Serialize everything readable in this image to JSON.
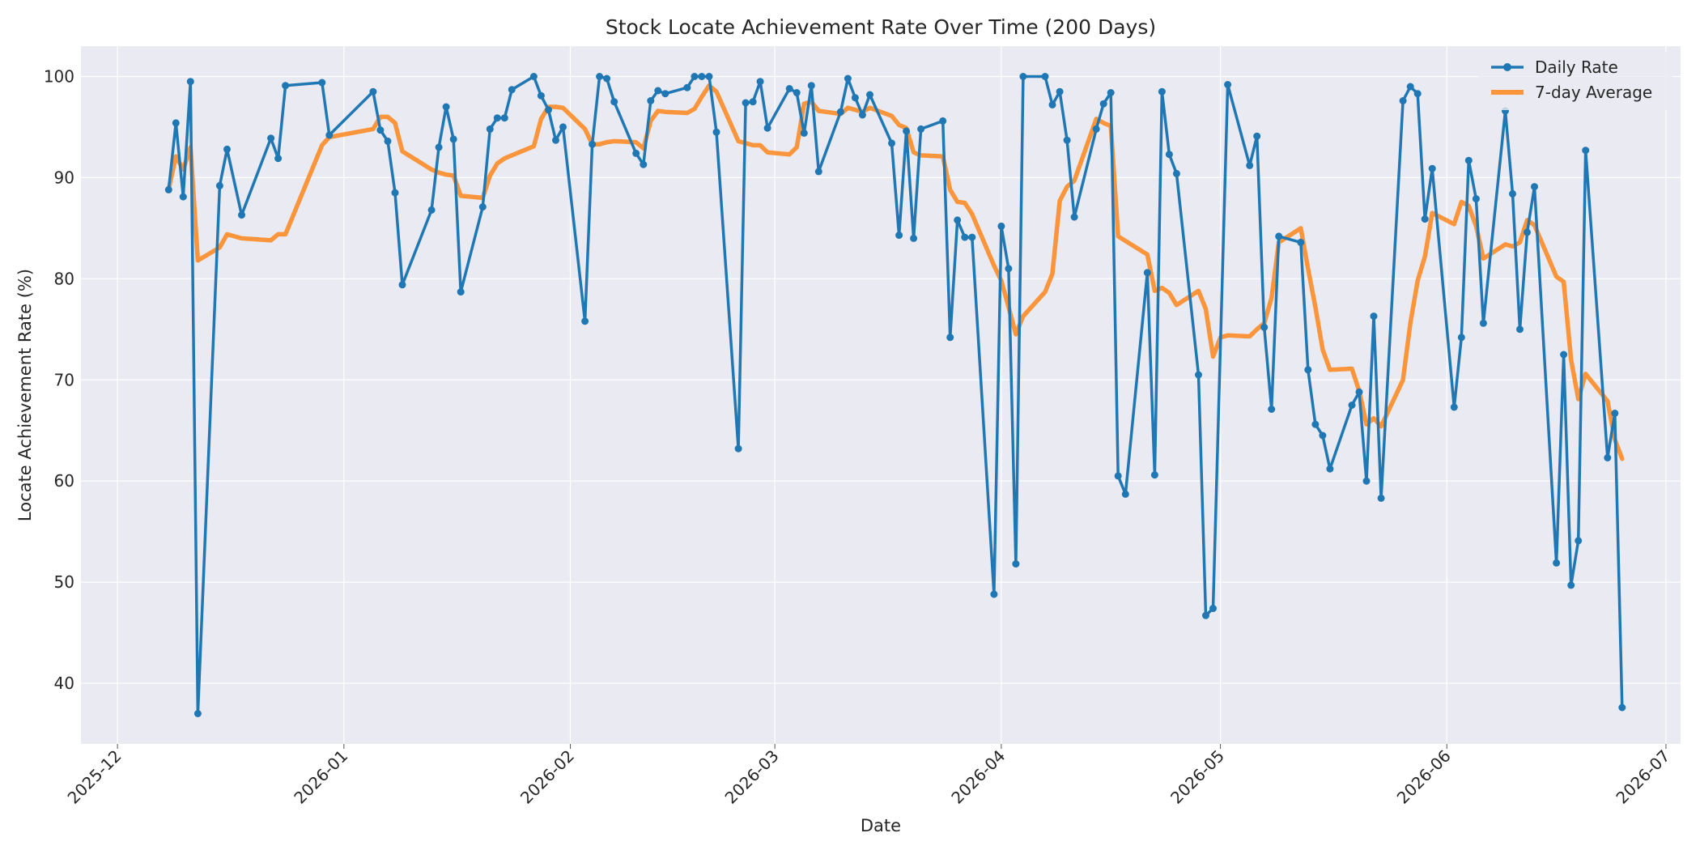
{
  "chart_data": {
    "type": "line",
    "title": "Stock Locate Achievement Rate Over Time (200 Days)",
    "xlabel": "Date",
    "ylabel": "Locate Achievement Rate (%)",
    "x_range": [
      "2025-11-26",
      "2026-07-03"
    ],
    "ylim": [
      34,
      103
    ],
    "x_ticks": [
      "2025-12",
      "2026-01",
      "2026-02",
      "2026-03",
      "2026-04",
      "2026-05",
      "2026-06",
      "2026-07"
    ],
    "y_ticks": [
      40,
      50,
      60,
      70,
      80,
      90,
      100
    ],
    "grid": true,
    "legend_position": "upper-right",
    "colors": {
      "daily": "#1f77b4",
      "average": "#ff7f0e",
      "plot_bg": "#eaeaf2",
      "grid": "#ffffff"
    },
    "series": [
      {
        "name": "Daily Rate",
        "style": "line-with-markers",
        "points": [
          [
            "2025-12-08",
            88.8
          ],
          [
            "2025-12-09",
            95.4
          ],
          [
            "2025-12-10",
            88.1
          ],
          [
            "2025-12-11",
            99.5
          ],
          [
            "2025-12-12",
            37.0
          ],
          [
            "2025-12-15",
            89.2
          ],
          [
            "2025-12-16",
            92.8
          ],
          [
            "2025-12-18",
            86.3
          ],
          [
            "2025-12-22",
            93.9
          ],
          [
            "2025-12-23",
            91.9
          ],
          [
            "2025-12-24",
            99.1
          ],
          [
            "2025-12-29",
            99.4
          ],
          [
            "2025-12-30",
            94.2
          ],
          [
            "2026-01-05",
            98.5
          ],
          [
            "2026-01-06",
            94.7
          ],
          [
            "2026-01-07",
            93.6
          ],
          [
            "2026-01-08",
            88.5
          ],
          [
            "2026-01-09",
            79.4
          ],
          [
            "2026-01-13",
            86.8
          ],
          [
            "2026-01-14",
            93.0
          ],
          [
            "2026-01-15",
            97.0
          ],
          [
            "2026-01-16",
            93.8
          ],
          [
            "2026-01-17",
            78.7
          ],
          [
            "2026-01-20",
            87.1
          ],
          [
            "2026-01-21",
            94.8
          ],
          [
            "2026-01-22",
            95.9
          ],
          [
            "2026-01-23",
            95.9
          ],
          [
            "2026-01-24",
            98.7
          ],
          [
            "2026-01-27",
            100.0
          ],
          [
            "2026-01-28",
            98.1
          ],
          [
            "2026-01-29",
            96.7
          ],
          [
            "2026-01-30",
            93.7
          ],
          [
            "2026-01-31",
            95.0
          ],
          [
            "2026-02-03",
            75.8
          ],
          [
            "2026-02-04",
            93.3
          ],
          [
            "2026-02-05",
            100.0
          ],
          [
            "2026-02-06",
            99.8
          ],
          [
            "2026-02-07",
            97.5
          ],
          [
            "2026-02-10",
            92.4
          ],
          [
            "2026-02-11",
            91.3
          ],
          [
            "2026-02-12",
            97.6
          ],
          [
            "2026-02-13",
            98.6
          ],
          [
            "2026-02-14",
            98.3
          ],
          [
            "2026-02-17",
            98.9
          ],
          [
            "2026-02-18",
            100.0
          ],
          [
            "2026-02-19",
            100.0
          ],
          [
            "2026-02-20",
            100.0
          ],
          [
            "2026-02-21",
            94.5
          ],
          [
            "2026-02-24",
            63.2
          ],
          [
            "2026-02-25",
            97.4
          ],
          [
            "2026-02-26",
            97.5
          ],
          [
            "2026-02-27",
            99.5
          ],
          [
            "2026-02-28",
            94.9
          ],
          [
            "2026-03-03",
            98.8
          ],
          [
            "2026-03-04",
            98.4
          ],
          [
            "2026-03-05",
            94.4
          ],
          [
            "2026-03-06",
            99.1
          ],
          [
            "2026-03-07",
            90.6
          ],
          [
            "2026-03-10",
            96.5
          ],
          [
            "2026-03-11",
            99.8
          ],
          [
            "2026-03-12",
            97.9
          ],
          [
            "2026-03-13",
            96.2
          ],
          [
            "2026-03-14",
            98.2
          ],
          [
            "2026-03-17",
            93.4
          ],
          [
            "2026-03-18",
            84.3
          ],
          [
            "2026-03-19",
            94.6
          ],
          [
            "2026-03-20",
            84.0
          ],
          [
            "2026-03-21",
            94.8
          ],
          [
            "2026-03-24",
            95.6
          ],
          [
            "2026-03-25",
            74.2
          ],
          [
            "2026-03-26",
            85.8
          ],
          [
            "2026-03-27",
            84.1
          ],
          [
            "2026-03-28",
            84.1
          ],
          [
            "2026-03-31",
            48.8
          ],
          [
            "2026-04-01",
            85.2
          ],
          [
            "2026-04-02",
            81.0
          ],
          [
            "2026-04-03",
            51.8
          ],
          [
            "2026-04-04",
            100.0
          ],
          [
            "2026-04-07",
            100.0
          ],
          [
            "2026-04-08",
            97.2
          ],
          [
            "2026-04-09",
            98.5
          ],
          [
            "2026-04-10",
            93.7
          ],
          [
            "2026-04-11",
            86.1
          ],
          [
            "2026-04-14",
            94.8
          ],
          [
            "2026-04-15",
            97.3
          ],
          [
            "2026-04-16",
            98.4
          ],
          [
            "2026-04-17",
            60.5
          ],
          [
            "2026-04-18",
            58.7
          ],
          [
            "2026-04-21",
            80.6
          ],
          [
            "2026-04-22",
            60.6
          ],
          [
            "2026-04-23",
            98.5
          ],
          [
            "2026-04-24",
            92.3
          ],
          [
            "2026-04-25",
            90.4
          ],
          [
            "2026-04-28",
            70.5
          ],
          [
            "2026-04-29",
            46.7
          ],
          [
            "2026-04-30",
            47.4
          ],
          [
            "2026-05-02",
            99.2
          ],
          [
            "2026-05-05",
            91.2
          ],
          [
            "2026-05-06",
            94.1
          ],
          [
            "2026-05-07",
            75.2
          ],
          [
            "2026-05-08",
            67.1
          ],
          [
            "2026-05-09",
            84.2
          ],
          [
            "2026-05-12",
            83.6
          ],
          [
            "2026-05-13",
            71.0
          ],
          [
            "2026-05-14",
            65.6
          ],
          [
            "2026-05-15",
            64.5
          ],
          [
            "2026-05-16",
            61.2
          ],
          [
            "2026-05-19",
            67.5
          ],
          [
            "2026-05-20",
            68.8
          ],
          [
            "2026-05-21",
            60.0
          ],
          [
            "2026-05-22",
            76.3
          ],
          [
            "2026-05-23",
            58.3
          ],
          [
            "2026-05-26",
            97.6
          ],
          [
            "2026-05-27",
            99.0
          ],
          [
            "2026-05-28",
            98.3
          ],
          [
            "2026-05-29",
            85.9
          ],
          [
            "2026-05-30",
            90.9
          ],
          [
            "2026-06-02",
            67.3
          ],
          [
            "2026-06-03",
            74.2
          ],
          [
            "2026-06-04",
            91.7
          ],
          [
            "2026-06-05",
            87.9
          ],
          [
            "2026-06-06",
            75.6
          ],
          [
            "2026-06-09",
            96.6
          ],
          [
            "2026-06-10",
            88.4
          ],
          [
            "2026-06-11",
            75.0
          ],
          [
            "2026-06-12",
            84.6
          ],
          [
            "2026-06-13",
            89.1
          ],
          [
            "2026-06-16",
            51.9
          ],
          [
            "2026-06-17",
            72.5
          ],
          [
            "2026-06-18",
            49.7
          ],
          [
            "2026-06-19",
            54.1
          ],
          [
            "2026-06-20",
            92.7
          ],
          [
            "2026-06-23",
            62.3
          ],
          [
            "2026-06-24",
            66.7
          ],
          [
            "2026-06-25",
            37.6
          ]
        ]
      },
      {
        "name": "7-day Average",
        "style": "thick-line",
        "points": [
          [
            "2025-12-08",
            88.8
          ],
          [
            "2025-12-09",
            92.1
          ],
          [
            "2025-12-10",
            90.8
          ],
          [
            "2025-12-11",
            93.0
          ],
          [
            "2025-12-12",
            81.8
          ],
          [
            "2025-12-15",
            83.1
          ],
          [
            "2025-12-16",
            84.4
          ],
          [
            "2025-12-18",
            84.0
          ],
          [
            "2025-12-22",
            83.8
          ],
          [
            "2025-12-23",
            84.4
          ],
          [
            "2025-12-24",
            84.4
          ],
          [
            "2025-12-29",
            93.2
          ],
          [
            "2025-12-30",
            94.0
          ],
          [
            "2026-01-05",
            94.8
          ],
          [
            "2026-01-06",
            96.0
          ],
          [
            "2026-01-07",
            96.0
          ],
          [
            "2026-01-08",
            95.4
          ],
          [
            "2026-01-09",
            92.6
          ],
          [
            "2026-01-13",
            90.8
          ],
          [
            "2026-01-14",
            90.5
          ],
          [
            "2026-01-15",
            90.3
          ],
          [
            "2026-01-16",
            90.2
          ],
          [
            "2026-01-17",
            88.2
          ],
          [
            "2026-01-20",
            88.0
          ],
          [
            "2026-01-21",
            90.2
          ],
          [
            "2026-01-22",
            91.4
          ],
          [
            "2026-01-23",
            91.9
          ],
          [
            "2026-01-24",
            92.2
          ],
          [
            "2026-01-27",
            93.1
          ],
          [
            "2026-01-28",
            95.8
          ],
          [
            "2026-01-29",
            97.0
          ],
          [
            "2026-01-30",
            97.0
          ],
          [
            "2026-01-31",
            96.9
          ],
          [
            "2026-02-03",
            94.8
          ],
          [
            "2026-02-04",
            93.3
          ],
          [
            "2026-02-05",
            93.3
          ],
          [
            "2026-02-06",
            93.5
          ],
          [
            "2026-02-07",
            93.6
          ],
          [
            "2026-02-10",
            93.5
          ],
          [
            "2026-02-11",
            92.9
          ],
          [
            "2026-02-12",
            95.6
          ],
          [
            "2026-02-13",
            96.6
          ],
          [
            "2026-02-14",
            96.5
          ],
          [
            "2026-02-17",
            96.4
          ],
          [
            "2026-02-18",
            96.8
          ],
          [
            "2026-02-19",
            98.0
          ],
          [
            "2026-02-20",
            99.1
          ],
          [
            "2026-02-21",
            98.5
          ],
          [
            "2026-02-24",
            93.6
          ],
          [
            "2026-02-25",
            93.4
          ],
          [
            "2026-02-26",
            93.2
          ],
          [
            "2026-02-27",
            93.2
          ],
          [
            "2026-02-28",
            92.5
          ],
          [
            "2026-03-03",
            92.3
          ],
          [
            "2026-03-04",
            93.0
          ],
          [
            "2026-03-05",
            97.3
          ],
          [
            "2026-03-06",
            97.5
          ],
          [
            "2026-03-07",
            96.6
          ],
          [
            "2026-03-10",
            96.3
          ],
          [
            "2026-03-11",
            96.9
          ],
          [
            "2026-03-12",
            96.7
          ],
          [
            "2026-03-13",
            96.5
          ],
          [
            "2026-03-14",
            96.9
          ],
          [
            "2026-03-17",
            96.1
          ],
          [
            "2026-03-18",
            95.2
          ],
          [
            "2026-03-19",
            94.9
          ],
          [
            "2026-03-20",
            92.5
          ],
          [
            "2026-03-21",
            92.2
          ],
          [
            "2026-03-24",
            92.1
          ],
          [
            "2026-03-25",
            88.8
          ],
          [
            "2026-03-26",
            87.6
          ],
          [
            "2026-03-27",
            87.5
          ],
          [
            "2026-03-28",
            86.4
          ],
          [
            "2026-03-31",
            81.3
          ],
          [
            "2026-04-01",
            79.8
          ],
          [
            "2026-04-02",
            77.2
          ],
          [
            "2026-04-03",
            74.5
          ],
          [
            "2026-04-04",
            76.3
          ],
          [
            "2026-04-07",
            78.7
          ],
          [
            "2026-04-08",
            80.5
          ],
          [
            "2026-04-09",
            87.7
          ],
          [
            "2026-04-10",
            89.1
          ],
          [
            "2026-04-11",
            89.7
          ],
          [
            "2026-04-14",
            95.8
          ],
          [
            "2026-04-15",
            95.4
          ],
          [
            "2026-04-16",
            95.1
          ],
          [
            "2026-04-17",
            84.2
          ],
          [
            "2026-04-21",
            82.4
          ],
          [
            "2026-04-22",
            78.8
          ],
          [
            "2026-04-23",
            79.1
          ],
          [
            "2026-04-24",
            78.6
          ],
          [
            "2026-04-25",
            77.4
          ],
          [
            "2026-04-28",
            78.8
          ],
          [
            "2026-04-29",
            77.0
          ],
          [
            "2026-04-30",
            72.3
          ],
          [
            "2026-05-01",
            74.2
          ],
          [
            "2026-05-02",
            74.4
          ],
          [
            "2026-05-05",
            74.3
          ],
          [
            "2026-05-06",
            75.0
          ],
          [
            "2026-05-07",
            75.6
          ],
          [
            "2026-05-08",
            78.1
          ],
          [
            "2026-05-09",
            83.6
          ],
          [
            "2026-05-12",
            85.0
          ],
          [
            "2026-05-13",
            81.0
          ],
          [
            "2026-05-14",
            77.2
          ],
          [
            "2026-05-15",
            73.0
          ],
          [
            "2026-05-16",
            71.0
          ],
          [
            "2026-05-19",
            71.1
          ],
          [
            "2026-05-20",
            68.9
          ],
          [
            "2026-05-21",
            65.6
          ],
          [
            "2026-05-22",
            66.2
          ],
          [
            "2026-05-23",
            65.4
          ],
          [
            "2026-05-26",
            70.0
          ],
          [
            "2026-05-27",
            75.6
          ],
          [
            "2026-05-28",
            79.8
          ],
          [
            "2026-05-29",
            82.2
          ],
          [
            "2026-05-30",
            86.5
          ],
          [
            "2026-06-02",
            85.4
          ],
          [
            "2026-06-03",
            87.6
          ],
          [
            "2026-06-04",
            87.2
          ],
          [
            "2026-06-05",
            85.2
          ],
          [
            "2026-06-06",
            82.0
          ],
          [
            "2026-06-09",
            83.4
          ],
          [
            "2026-06-10",
            83.2
          ],
          [
            "2026-06-11",
            83.6
          ],
          [
            "2026-06-12",
            85.8
          ],
          [
            "2026-06-13",
            85.3
          ],
          [
            "2026-06-16",
            80.2
          ],
          [
            "2026-06-17",
            79.7
          ],
          [
            "2026-06-18",
            72.0
          ],
          [
            "2026-06-19",
            68.1
          ],
          [
            "2026-06-20",
            70.6
          ],
          [
            "2026-06-23",
            67.9
          ],
          [
            "2026-06-24",
            64.1
          ],
          [
            "2026-06-25",
            62.2
          ]
        ]
      }
    ]
  }
}
